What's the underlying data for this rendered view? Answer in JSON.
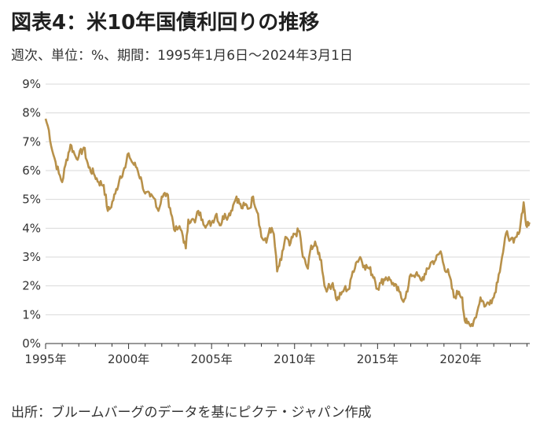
{
  "title": "図表4：米10年国債利回りの推移",
  "subtitle": "週次、単位：%、期間：1995年1月6日～2024年3月1日",
  "source": "出所：ブルームバーグのデータを基にピクテ・ジャパン作成",
  "colors": {
    "line": "#B8914A",
    "grid": "#d9d9d9",
    "axis": "#333333"
  },
  "chart_data": {
    "type": "line",
    "title": "図表4：米10年国債利回りの推移",
    "xlabel": "",
    "ylabel": "",
    "xlim": [
      1995.0,
      2024.17
    ],
    "ylim": [
      0,
      9
    ],
    "grid": "horizontal",
    "y_ticks": [
      "0%",
      "1%",
      "2%",
      "3%",
      "4%",
      "5%",
      "6%",
      "7%",
      "8%",
      "9%"
    ],
    "x_ticks": [
      "1995年",
      "2000年",
      "2005年",
      "2010年",
      "2015年",
      "2020年"
    ],
    "series": [
      {
        "x": [
          1995.0,
          1995.2,
          1995.4,
          1995.6,
          1995.8,
          1996.0,
          1996.2,
          1996.5,
          1996.8,
          1997.0,
          1997.3,
          1997.6,
          1997.9,
          1998.2,
          1998.5,
          1998.75,
          1998.9,
          1999.2,
          1999.5,
          1999.8,
          2000.0,
          2000.2,
          2000.5,
          2000.8,
          2001.0,
          2001.3,
          2001.6,
          2001.8,
          2002.0,
          2002.3,
          2002.5,
          2002.8,
          2003.0,
          2003.2,
          2003.45,
          2003.6,
          2003.8,
          2004.0,
          2004.2,
          2004.45,
          2004.7,
          2005.0,
          2005.3,
          2005.5,
          2005.8,
          2006.0,
          2006.3,
          2006.5,
          2006.8,
          2007.0,
          2007.3,
          2007.5,
          2007.8,
          2008.0,
          2008.3,
          2008.5,
          2008.75,
          2008.95,
          2009.2,
          2009.45,
          2009.7,
          2010.0,
          2010.3,
          2010.5,
          2010.8,
          2011.0,
          2011.3,
          2011.6,
          2011.8,
          2012.0,
          2012.3,
          2012.55,
          2012.8,
          2013.0,
          2013.3,
          2013.5,
          2013.7,
          2013.95,
          2014.2,
          2014.5,
          2014.8,
          2015.0,
          2015.2,
          2015.5,
          2015.8,
          2016.0,
          2016.3,
          2016.5,
          2016.8,
          2017.0,
          2017.3,
          2017.6,
          2017.9,
          2018.2,
          2018.5,
          2018.8,
          2019.0,
          2019.3,
          2019.6,
          2019.9,
          2020.1,
          2020.25,
          2020.4,
          2020.6,
          2020.8,
          2021.0,
          2021.2,
          2021.5,
          2021.8,
          2022.0,
          2022.3,
          2022.5,
          2022.8,
          2023.0,
          2023.2,
          2023.5,
          2023.8,
          2023.95,
          2024.1,
          2024.17
        ],
        "values": [
          7.8,
          7.4,
          6.7,
          6.3,
          5.9,
          5.6,
          6.2,
          6.9,
          6.5,
          6.5,
          6.8,
          6.1,
          5.9,
          5.6,
          5.5,
          4.6,
          4.7,
          5.2,
          5.8,
          6.1,
          6.6,
          6.3,
          6.1,
          5.6,
          5.2,
          5.1,
          5.0,
          4.6,
          5.1,
          5.2,
          4.7,
          3.9,
          4.0,
          3.9,
          3.3,
          4.3,
          4.3,
          4.2,
          4.6,
          4.3,
          4.1,
          4.2,
          4.5,
          4.1,
          4.5,
          4.4,
          4.8,
          5.1,
          4.7,
          4.8,
          4.7,
          5.1,
          4.5,
          3.7,
          3.5,
          4.0,
          3.8,
          2.5,
          2.9,
          3.7,
          3.4,
          3.8,
          3.9,
          3.0,
          2.6,
          3.4,
          3.4,
          2.9,
          2.0,
          1.9,
          2.1,
          1.5,
          1.7,
          1.9,
          1.9,
          2.5,
          2.8,
          3.0,
          2.7,
          2.6,
          2.3,
          1.9,
          2.1,
          2.3,
          2.2,
          2.0,
          1.8,
          1.5,
          1.8,
          2.4,
          2.4,
          2.2,
          2.4,
          2.8,
          2.9,
          3.2,
          2.7,
          2.4,
          1.6,
          1.8,
          1.6,
          0.8,
          0.7,
          0.6,
          0.8,
          1.1,
          1.6,
          1.3,
          1.5,
          1.6,
          2.4,
          3.0,
          3.9,
          3.6,
          3.5,
          3.8,
          4.9,
          4.1,
          4.1,
          4.2
        ]
      }
    ]
  }
}
